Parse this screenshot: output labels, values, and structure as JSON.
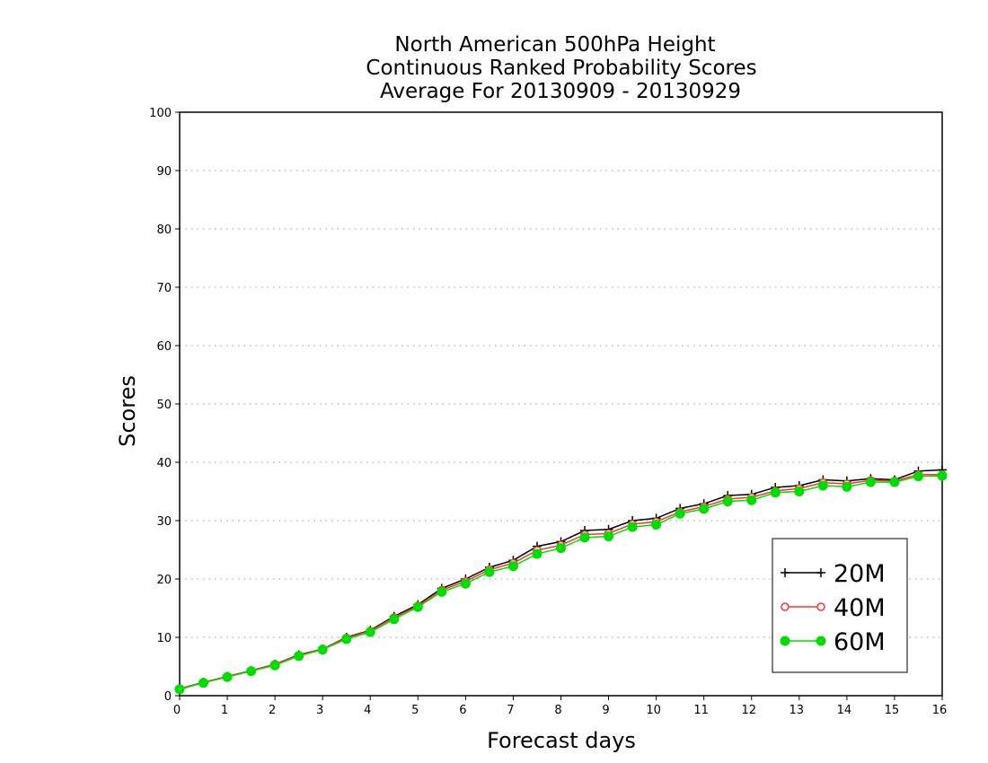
{
  "chart_data": {
    "type": "line",
    "title_lines": [
      "North American 500hPa Height",
      "Continuous Ranked Probability Scores",
      "Average For 20130909 - 20130929"
    ],
    "xlabel": "Forecast days",
    "ylabel": "Scores",
    "xlim": [
      0,
      16
    ],
    "ylim": [
      0,
      100
    ],
    "x_ticks": [
      0,
      1,
      2,
      3,
      4,
      5,
      6,
      7,
      8,
      9,
      10,
      11,
      12,
      13,
      14,
      15,
      16
    ],
    "y_ticks": [
      0,
      10,
      20,
      30,
      40,
      50,
      60,
      70,
      80,
      90,
      100
    ],
    "grid": "horizontal dotted",
    "legend_position": "bottom-right",
    "x": [
      0,
      0.5,
      1,
      1.5,
      2,
      2.5,
      3,
      3.5,
      4,
      4.5,
      5,
      5.5,
      6,
      6.5,
      7,
      7.5,
      8,
      8.5,
      9,
      9.5,
      10,
      10.5,
      11,
      11.5,
      12,
      12.5,
      13,
      13.5,
      14,
      14.5,
      15,
      15.5,
      16
    ],
    "series": [
      {
        "name": "20M",
        "color": "#000000",
        "marker": "plus",
        "values": [
          1.2,
          2.3,
          3.3,
          4.3,
          5.4,
          7.0,
          8.0,
          10.0,
          11.2,
          13.6,
          15.6,
          18.4,
          20.0,
          22.0,
          23.2,
          25.6,
          26.4,
          28.3,
          28.5,
          30.0,
          30.4,
          32.1,
          32.9,
          34.3,
          34.5,
          35.7,
          36.0,
          37.0,
          36.8,
          37.2,
          37.0,
          38.5,
          38.7
        ]
      },
      {
        "name": "40M",
        "color": "#ff3333",
        "marker": "open-circle",
        "values": [
          1.2,
          2.3,
          3.3,
          4.3,
          5.4,
          6.9,
          8.0,
          9.9,
          11.1,
          13.4,
          15.4,
          18.1,
          19.6,
          21.6,
          22.7,
          24.9,
          25.8,
          27.6,
          27.8,
          29.4,
          29.8,
          31.5,
          32.4,
          33.7,
          34.0,
          35.1,
          35.5,
          36.5,
          36.3,
          36.9,
          36.8,
          37.9,
          37.9
        ]
      },
      {
        "name": "60M",
        "color": "#00dd00",
        "marker": "filled-circle",
        "values": [
          1.1,
          2.2,
          3.2,
          4.2,
          5.2,
          6.8,
          7.9,
          9.7,
          10.9,
          13.1,
          15.2,
          17.8,
          19.2,
          21.2,
          22.2,
          24.3,
          25.3,
          27.1,
          27.3,
          28.9,
          29.3,
          31.2,
          32.0,
          33.3,
          33.5,
          34.8,
          35.0,
          36.0,
          35.8,
          36.6,
          36.6,
          37.6,
          37.7
        ]
      }
    ]
  }
}
